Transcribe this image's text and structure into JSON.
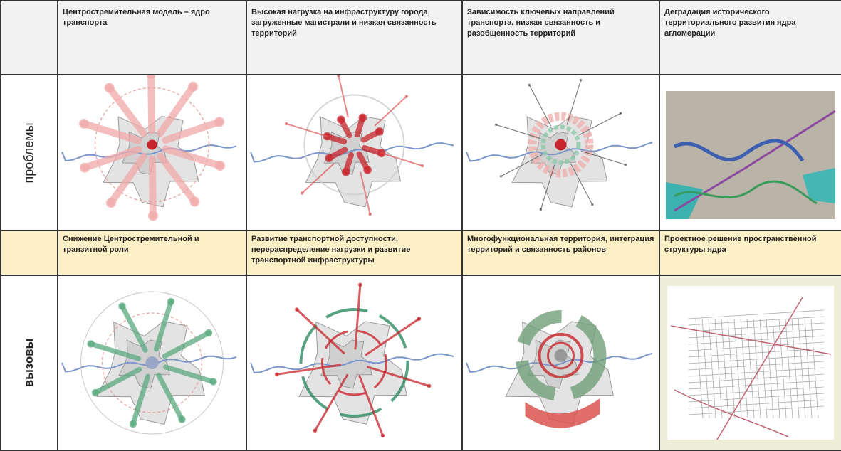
{
  "header": {
    "columns": [
      "Центростремительная модель – ядро транспорта",
      "Высокая нагрузка на инфраструктуру города, загруженные магистрали и низкая связанность территорий",
      "Зависимость ключевых направлений транспорта, низкая связанность и разобщенность территорий",
      "Деградация исторического территориального развития ядра агломерации"
    ]
  },
  "problems_row": {
    "label": "проблемы"
  },
  "subheader": {
    "columns": [
      "Снижение Центростремительной и транзитной роли",
      "Развитие транспортной доступности, перераспределение нагрузки и развитие транспортной инфраструктуры",
      "Многофункциональная территория, интеграция территорий и связанность районов",
      "Проектное решение пространственной структуры ядра"
    ]
  },
  "challenges_row": {
    "label": "вызовы"
  }
}
